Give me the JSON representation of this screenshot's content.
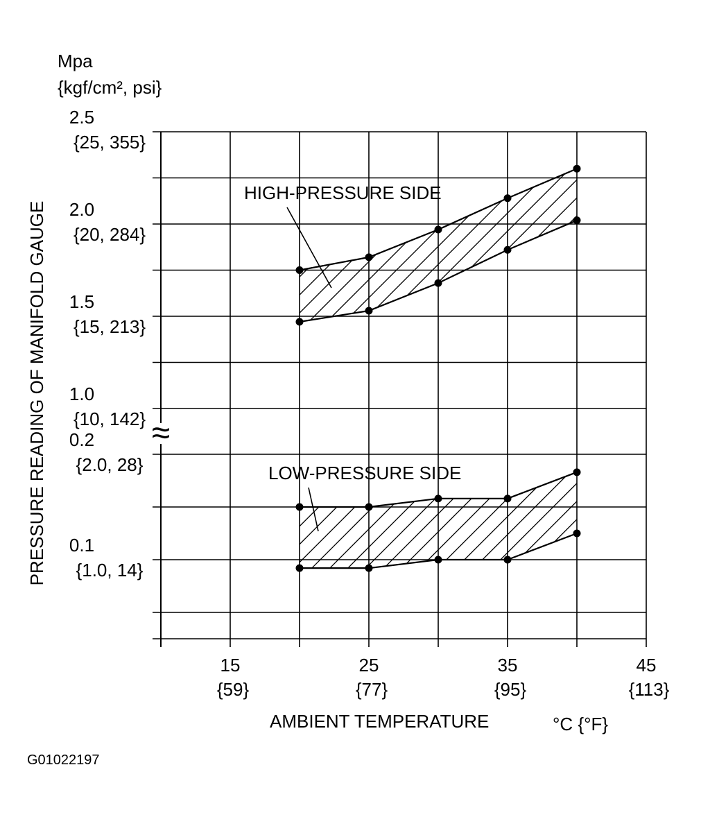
{
  "figure_id": "G01022197",
  "chart_data": {
    "type": "line",
    "x_axis": {
      "label": "AMBIENT TEMPERATURE",
      "unit": "°C {°F}",
      "range": [
        10,
        45
      ],
      "ticks": [
        {
          "c": "15",
          "f": "{59}",
          "value": 15
        },
        {
          "c": "25",
          "f": "{77}",
          "value": 25
        },
        {
          "c": "35",
          "f": "{95}",
          "value": 35
        },
        {
          "c": "45",
          "f": "{113}",
          "value": 45
        }
      ],
      "gridlines_at": [
        15,
        20,
        25,
        30,
        35,
        40,
        45
      ]
    },
    "y_axis": {
      "label": "PRESSURE READING OF MANIFOLD GAUGE",
      "unit_line1": "Mpa",
      "unit_line2": "{kgf/cm², psi}",
      "break_symbol": "≈",
      "upper_segment": {
        "range": [
          1.0,
          2.5
        ],
        "ticks": [
          {
            "value_text": "2.5",
            "sub_text": "{25, 355}",
            "value": 2.5
          },
          {
            "value_text": "2.0",
            "sub_text": "{20, 284}",
            "value": 2.0
          },
          {
            "value_text": "1.5",
            "sub_text": "{15, 213}",
            "value": 1.5
          },
          {
            "value_text": "1.0",
            "sub_text": "{10, 142}",
            "value": 1.0
          }
        ],
        "gridlines_at": [
          1.0,
          1.25,
          1.5,
          1.75,
          2.0,
          2.25,
          2.5
        ]
      },
      "lower_segment": {
        "range": [
          0.025,
          0.2
        ],
        "ticks": [
          {
            "value_text": "0.2",
            "sub_text": "{2.0, 28}",
            "value": 0.2
          },
          {
            "value_text": "0.1",
            "sub_text": "{1.0, 14}",
            "value": 0.1
          }
        ],
        "gridlines_at": [
          0.025,
          0.05,
          0.1,
          0.15,
          0.2
        ]
      }
    },
    "series": [
      {
        "name": "HIGH-PRESSURE SIDE",
        "segment": "upper",
        "bound": "upper",
        "x": [
          20,
          25,
          30,
          35,
          40
        ],
        "y": [
          1.75,
          1.82,
          1.97,
          2.14,
          2.3
        ]
      },
      {
        "name": "HIGH-PRESSURE SIDE",
        "segment": "upper",
        "bound": "lower",
        "x": [
          20,
          25,
          30,
          35,
          40
        ],
        "y": [
          1.47,
          1.53,
          1.68,
          1.86,
          2.02
        ]
      },
      {
        "name": "LOW-PRESSURE SIDE",
        "segment": "lower",
        "bound": "upper",
        "x": [
          20,
          25,
          30,
          35,
          40
        ],
        "y": [
          0.15,
          0.15,
          0.158,
          0.158,
          0.183
        ]
      },
      {
        "name": "LOW-PRESSURE SIDE",
        "segment": "lower",
        "bound": "lower",
        "x": [
          20,
          25,
          30,
          35,
          40
        ],
        "y": [
          0.092,
          0.092,
          0.1,
          0.1,
          0.125
        ]
      }
    ],
    "annotations": [
      {
        "text": "HIGH-PRESSURE SIDE",
        "points_to": "high-pressure band"
      },
      {
        "text": "LOW-PRESSURE SIDE",
        "points_to": "low-pressure band"
      }
    ],
    "band_fill": "diagonal hatch",
    "grid": true,
    "legend": "none"
  }
}
